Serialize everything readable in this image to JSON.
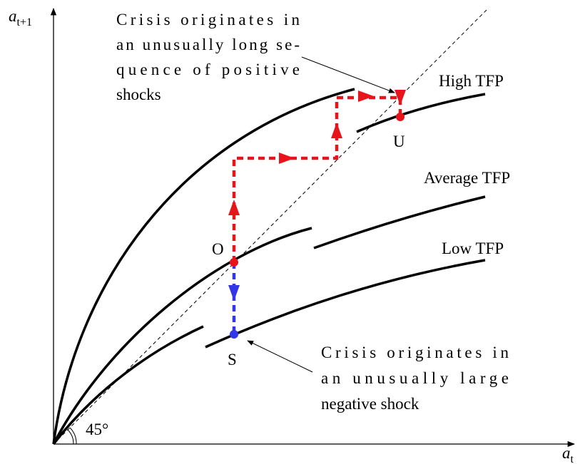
{
  "axes": {
    "y_label": {
      "symbol": "a",
      "subscript": "t+1"
    },
    "x_label": {
      "symbol": "a",
      "subscript": "t"
    },
    "angle_label": "45°"
  },
  "curves": {
    "high": "High TFP",
    "average": "Average TFP",
    "low": "Low TFP"
  },
  "points": {
    "o": "O",
    "s": "S",
    "u": "U"
  },
  "annotations": {
    "long_sequence": [
      "Crisis originates in",
      "an unusually long se-",
      "quence of positive",
      "shocks"
    ],
    "large_shock": [
      "Crisis originates in",
      "an unusually large",
      "negative shock"
    ]
  }
}
